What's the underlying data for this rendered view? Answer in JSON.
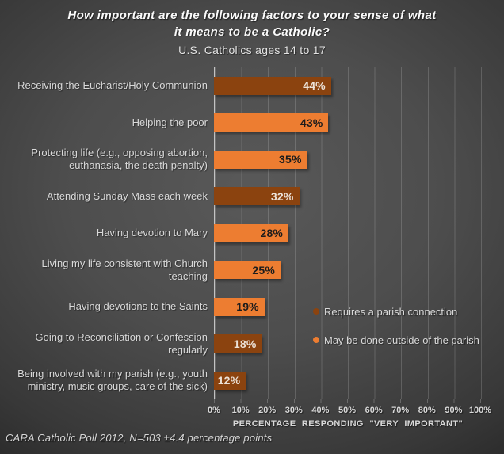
{
  "header": {
    "title_line1": "How important are the following factors to your sense of what",
    "title_line2": "it means to be a Catholic?",
    "subtitle": "U.S. Catholics ages 14 to 17"
  },
  "chart_data": {
    "type": "bar",
    "orientation": "horizontal",
    "title": "How important are the following factors to your sense of what it means to be a Catholic?",
    "subtitle": "U.S. Catholics ages 14 to 17",
    "categories": [
      "Receiving the Eucharist/Holy Communion",
      "Helping the poor",
      "Protecting life (e.g., opposing abortion, euthanasia, the death penalty)",
      "Attending Sunday Mass each week",
      "Having devotion to Mary",
      "Living my life consistent with Church teaching",
      "Having devotions to the Saints",
      "Going to Reconciliation or Confession regularly",
      "Being involved with my parish (e.g., youth ministry, music groups, care of the sick)"
    ],
    "values": [
      44,
      43,
      35,
      32,
      28,
      25,
      19,
      18,
      12
    ],
    "bars": [
      {
        "label": "Receiving the Eucharist/Holy Communion",
        "value": 44,
        "pct": "44%",
        "series": 0
      },
      {
        "label": "Helping the poor",
        "value": 43,
        "pct": "43%",
        "series": 1
      },
      {
        "label": "Protecting life (e.g., opposing abortion, euthanasia, the death penalty)",
        "value": 35,
        "pct": "35%",
        "series": 1
      },
      {
        "label": "Attending Sunday Mass each week",
        "value": 32,
        "pct": "32%",
        "series": 0
      },
      {
        "label": "Having devotion to Mary",
        "value": 28,
        "pct": "28%",
        "series": 1
      },
      {
        "label": "Living my life consistent with Church teaching",
        "value": 25,
        "pct": "25%",
        "series": 1
      },
      {
        "label": "Having devotions to the Saints",
        "value": 19,
        "pct": "19%",
        "series": 1
      },
      {
        "label": "Going to Reconciliation or Confession regularly",
        "value": 18,
        "pct": "18%",
        "series": 0
      },
      {
        "label": "Being involved with my parish (e.g., youth ministry, music groups, care of the sick)",
        "value": 12,
        "pct": "12%",
        "series": 0
      }
    ],
    "series": [
      {
        "name": "Requires a parish connection",
        "color": "#8B430F",
        "value_text_color": "#ece2d8"
      },
      {
        "name": "May be done outside of the parish",
        "color": "#ED7D31",
        "value_text_color": "#1c1c1c"
      }
    ],
    "xlabel": "PERCENTAGE RESPONDING \"VERY IMPORTANT\"",
    "xlim": [
      0,
      100
    ],
    "xticks": [
      "0%",
      "10%",
      "20%",
      "30%",
      "40%",
      "50%",
      "60%",
      "70%",
      "80%",
      "90%",
      "100%"
    ],
    "grid": true,
    "legend_position": "middle-right"
  },
  "footer": {
    "source_note": "CARA Catholic Poll 2012, N=503 ±4.4 percentage points"
  },
  "colors": {
    "background_center": "#595959",
    "background_edge": "#252525",
    "gridline": "rgba(255,255,255,0.16)",
    "axis_line": "#c3c3c3",
    "text_light": "#d9d9d9",
    "brown_bar": "#8B430F",
    "orange_bar": "#ED7D31"
  }
}
